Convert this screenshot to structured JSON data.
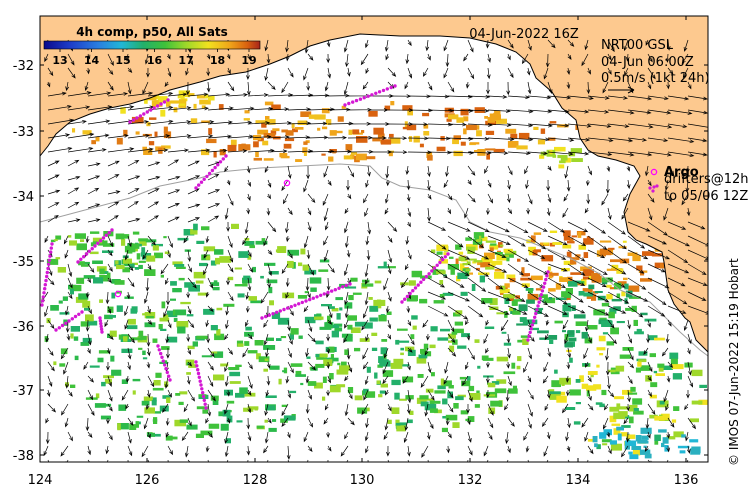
{
  "map": {
    "colorbar": {
      "title": "4h comp, p50, All Sats",
      "ticks": [
        "13",
        "14",
        "15",
        "16",
        "17",
        "18",
        "19"
      ],
      "colors": [
        "#0a0a8c",
        "#1d3cc8",
        "#2a7ee0",
        "#21b7d6",
        "#23b06a",
        "#3fc23a",
        "#9fd82a",
        "#f1e21f",
        "#f0a51a",
        "#d9620f",
        "#a8241a"
      ]
    },
    "timestamp": "04-Jun-2022 16Z",
    "current_info": {
      "line1": "NRT00 GSL",
      "line2": "04-Jun 06:00Z",
      "line3": "0.5m/s (1kt 24h)"
    },
    "legend": {
      "argo_label": "Argo",
      "drifters_label": "drifters@12h",
      "drifters_to": "to 05/06 12Z"
    },
    "credit": "© IMOS 07-Jun-2022 15:19 Hobart",
    "lat_ticks": [
      "-32",
      "-33",
      "-34",
      "-35",
      "-36",
      "-37",
      "-38"
    ],
    "lon_ticks": [
      "124",
      "126",
      "128",
      "130",
      "132",
      "134",
      "136"
    ],
    "colors": {
      "land": "#fdc98f",
      "argo": "#ff00ff",
      "drifter": "#d418d4",
      "vector": "#000000",
      "isobath": "#a0a0a0"
    },
    "icons": [
      "arrow-icon",
      "argo-circle-icon",
      "drifter-track-icon"
    ]
  }
}
